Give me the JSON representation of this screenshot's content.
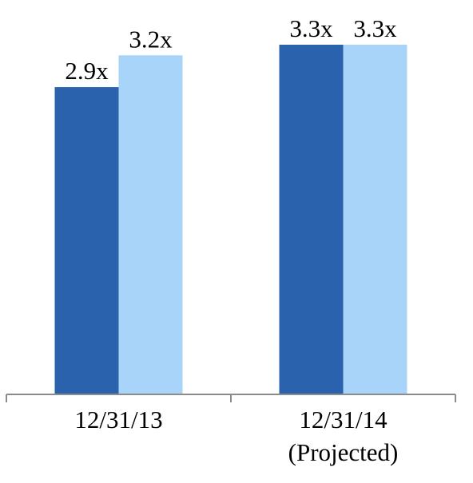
{
  "chart_data": {
    "type": "bar",
    "categories": [
      [
        "12/31/13"
      ],
      [
        "12/31/14",
        "(Projected)"
      ]
    ],
    "series": [
      {
        "values": [
          2.9,
          3.3
        ],
        "labels": [
          "2.9x",
          "3.3x"
        ],
        "color": "#2b62ad"
      },
      {
        "values": [
          3.2,
          3.3
        ],
        "labels": [
          "3.2x",
          "3.3x"
        ],
        "color": "#a9d4fa"
      }
    ],
    "ylim": [
      0,
      3.3
    ],
    "grid": false,
    "axis_color": "#8c8c8c"
  }
}
